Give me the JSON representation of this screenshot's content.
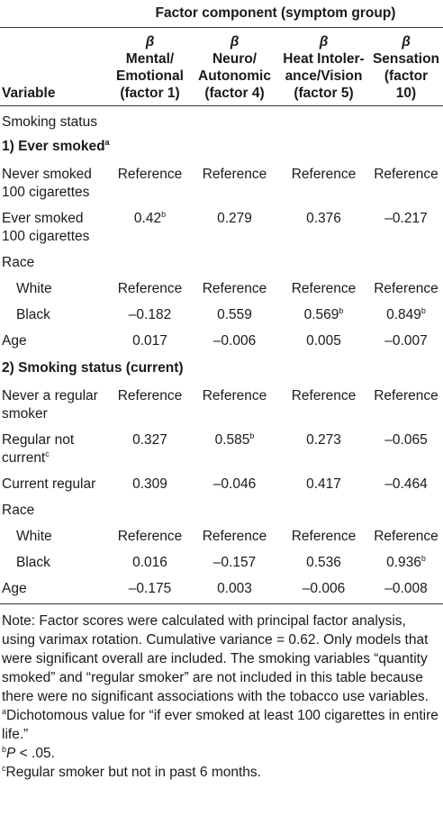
{
  "table": {
    "group_header": "Factor component (symptom group)",
    "variable_header": "Variable",
    "beta_symbol": "β",
    "columns": [
      {
        "line1": "Mental/",
        "line2": "Emotional",
        "line3": "(factor 1)"
      },
      {
        "line1": "Neuro/",
        "line2": "Autonomic",
        "line3": "(factor 4)"
      },
      {
        "line1": "Heat Intoler-",
        "line2": "ance/Vision",
        "line3": "(factor 5)"
      },
      {
        "line1": "Sensation",
        "line2": "(factor",
        "line3": "10)"
      }
    ],
    "section_label": "Smoking status",
    "model1": {
      "title": "1) Ever smoked",
      "title_sup": "a",
      "rows": {
        "never": {
          "label": "Never smoked 100 cigarettes",
          "values": [
            "Reference",
            "Reference",
            "Reference",
            "Reference"
          ]
        },
        "ever": {
          "label": "Ever smoked 100 cigarettes",
          "values": [
            "0.42",
            "0.279",
            "0.376",
            "–0.217"
          ],
          "sups": [
            "b",
            "",
            "",
            ""
          ]
        },
        "race": {
          "label": "Race"
        },
        "white": {
          "label": "White",
          "values": [
            "Reference",
            "Reference",
            "Reference",
            "Reference"
          ]
        },
        "black": {
          "label": "Black",
          "values": [
            "–0.182",
            "0.559",
            "0.569",
            "0.849"
          ],
          "sups": [
            "",
            "",
            "b",
            "b"
          ]
        },
        "age": {
          "label": "Age",
          "values": [
            "0.017",
            "–0.006",
            "0.005",
            "–0.007"
          ]
        }
      }
    },
    "model2": {
      "title": "2) Smoking status (current)",
      "rows": {
        "never": {
          "label": "Never a regular smoker",
          "values": [
            "Reference",
            "Reference",
            "Reference",
            "Reference"
          ]
        },
        "regular_not": {
          "label": "Regular not current",
          "label_sup": "c",
          "values": [
            "0.327",
            "0.585",
            "0.273",
            "–0.065"
          ],
          "sups": [
            "",
            "b",
            "",
            ""
          ]
        },
        "current": {
          "label": "Current regular",
          "values": [
            "0.309",
            "–0.046",
            "0.417",
            "–0.464"
          ]
        },
        "race": {
          "label": "Race"
        },
        "white": {
          "label": "White",
          "values": [
            "Reference",
            "Reference",
            "Reference",
            "Reference"
          ]
        },
        "black": {
          "label": "Black",
          "values": [
            "0.016",
            "–0.157",
            "0.536",
            "0.936"
          ],
          "sups": [
            "",
            "",
            "",
            "b"
          ]
        },
        "age": {
          "label": "Age",
          "values": [
            "–0.175",
            "0.003",
            "–0.006",
            "–0.008"
          ]
        }
      }
    }
  },
  "notes": {
    "main": "Note: Factor scores were calculated with principal factor analysis, using varimax rotation. Cumulative variance = 0.62. Only models that were significant overall are included. The smoking variables “quantity smoked” and “regular smoker” are not included in this table because there were no significant associations with the tobacco use variables.",
    "fn_a_mark": "a",
    "fn_a": "Dichotomous value for “if ever smoked at least 100 cigarettes in entire life.”",
    "fn_b_mark": "b",
    "fn_b_p": "P",
    "fn_b": " < .05.",
    "fn_c_mark": "c",
    "fn_c": "Regular smoker but not in past 6 months."
  }
}
